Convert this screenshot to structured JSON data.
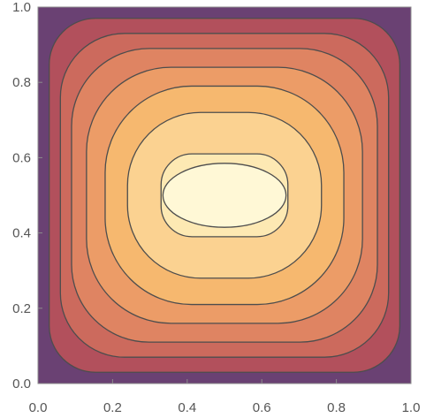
{
  "chart_data": {
    "type": "contour",
    "title": "",
    "xlabel": "",
    "ylabel": "",
    "xlim": [
      0,
      1
    ],
    "ylim": [
      0,
      1
    ],
    "x_ticks": [
      0.0,
      0.2,
      0.4,
      0.6,
      0.8,
      1.0
    ],
    "y_ticks": [
      0.0,
      0.2,
      0.4,
      0.6,
      0.8,
      1.0
    ],
    "x_tick_labels": [
      "0.0",
      "0.2",
      "0.4",
      "0.6",
      "0.8",
      "1.0"
    ],
    "y_tick_labels": [
      "0.0",
      "0.2",
      "0.4",
      "0.6",
      "0.8",
      "1.0"
    ],
    "center": [
      0.5,
      0.5
    ],
    "contour_rings": [
      {
        "x_range": [
          0.03,
          0.97
        ],
        "y_range": [
          0.03,
          0.97
        ],
        "corner_rounding": 0.06,
        "fill": "#b2505c"
      },
      {
        "x_range": [
          0.06,
          0.94
        ],
        "y_range": [
          0.07,
          0.93
        ],
        "corner_rounding": 0.09,
        "fill": "#cc6a5d"
      },
      {
        "x_range": [
          0.09,
          0.91
        ],
        "y_range": [
          0.11,
          0.89
        ],
        "corner_rounding": 0.12,
        "fill": "#df8462"
      },
      {
        "x_range": [
          0.13,
          0.87
        ],
        "y_range": [
          0.16,
          0.84
        ],
        "corner_rounding": 0.15,
        "fill": "#ec9c67"
      },
      {
        "x_range": [
          0.18,
          0.82
        ],
        "y_range": [
          0.21,
          0.79
        ],
        "corner_rounding": 0.18,
        "fill": "#f6b86f"
      },
      {
        "x_range": [
          0.24,
          0.76
        ],
        "y_range": [
          0.28,
          0.72
        ],
        "corner_rounding": 0.2,
        "fill": "#fbd291"
      },
      {
        "x_range": [
          0.33,
          0.67
        ],
        "y_range": [
          0.39,
          0.61
        ],
        "corner_rounding": 0.17,
        "fill": "#fde9b3"
      },
      {
        "x_range": [
          0.335,
          0.665
        ],
        "y_range": [
          0.415,
          0.585
        ],
        "corner_rounding": 0.3,
        "fill": "#fff8d6",
        "shape": "ellipse"
      }
    ],
    "background_fill": "#6a4173",
    "contour_line_color": "#4d4d4d",
    "frame_color": "#8c8c8c",
    "grid": false,
    "legend": "none"
  }
}
